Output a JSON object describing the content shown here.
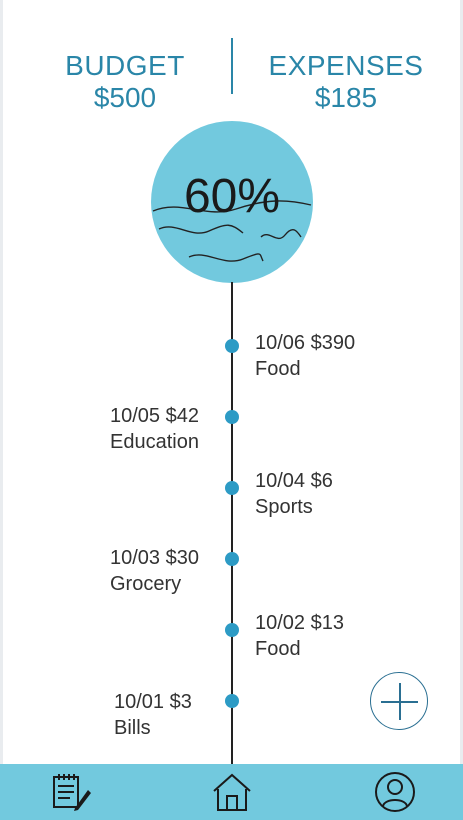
{
  "summary": {
    "budget_label": "BUDGET",
    "budget_value": "$500",
    "expenses_label": "EXPENSES",
    "expenses_value": "$185"
  },
  "progress": {
    "text": "60%",
    "percent": 60
  },
  "timeline": [
    {
      "date_amount": "10/06 $390",
      "category": "Food",
      "side": "right"
    },
    {
      "date_amount": "10/05 $42",
      "category": "Education",
      "side": "left"
    },
    {
      "date_amount": "10/04 $6",
      "category": "Sports",
      "side": "right"
    },
    {
      "date_amount": "10/03 $30",
      "category": "Grocery",
      "side": "left"
    },
    {
      "date_amount": "10/02 $13",
      "category": "Food",
      "side": "right"
    },
    {
      "date_amount": "10/01 $3",
      "category": "Bills",
      "side": "left"
    }
  ],
  "icons": {
    "add": "plus-icon",
    "nav_notes": "notepad-pencil-icon",
    "nav_home": "home-icon",
    "nav_profile": "user-profile-icon"
  },
  "colors": {
    "accent": "#2a86a8",
    "circle": "#72c9de",
    "nav": "#72c9de",
    "dot": "#2d9bc5"
  }
}
